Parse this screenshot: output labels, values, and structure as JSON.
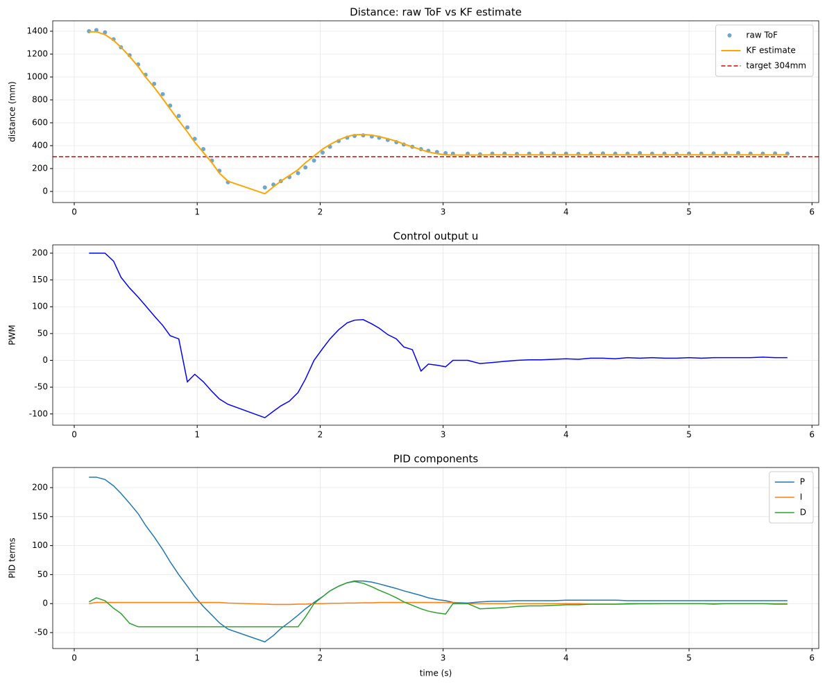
{
  "chart_data": [
    {
      "type": "line",
      "title": "Distance: raw ToF vs KF estimate",
      "ylabel": "distance (mm)",
      "x": [
        0.12,
        0.18,
        0.25,
        0.32,
        0.38,
        0.45,
        0.52,
        0.58,
        0.65,
        0.72,
        0.78,
        0.85,
        0.92,
        0.98,
        1.05,
        1.12,
        1.18,
        1.25,
        1.55,
        1.62,
        1.68,
        1.75,
        1.82,
        1.88,
        1.95,
        2.02,
        2.08,
        2.15,
        2.22,
        2.28,
        2.35,
        2.42,
        2.48,
        2.55,
        2.62,
        2.68,
        2.75,
        2.82,
        2.88,
        2.95,
        3.02,
        3.08,
        3.2,
        3.3,
        3.4,
        3.5,
        3.6,
        3.7,
        3.8,
        3.9,
        4.0,
        4.1,
        4.2,
        4.3,
        4.4,
        4.5,
        4.6,
        4.7,
        4.8,
        4.9,
        5.0,
        5.1,
        5.2,
        5.3,
        5.4,
        5.5,
        5.6,
        5.7,
        5.8
      ],
      "series": [
        {
          "name": "raw ToF",
          "color": "#1f77b4",
          "marker": "circle",
          "linestyle": "none",
          "values": [
            1400,
            1410,
            1390,
            1330,
            1260,
            1190,
            1110,
            1020,
            940,
            850,
            750,
            660,
            560,
            460,
            370,
            270,
            180,
            80,
            35,
            60,
            90,
            125,
            160,
            210,
            270,
            340,
            390,
            440,
            470,
            485,
            490,
            480,
            470,
            450,
            430,
            410,
            390,
            370,
            355,
            345,
            335,
            330,
            330,
            325,
            330,
            330,
            328,
            330,
            332,
            330,
            330,
            328,
            330,
            332,
            330,
            330,
            335,
            330,
            330,
            328,
            330,
            330,
            332,
            330,
            335,
            330,
            330,
            332,
            330
          ]
        },
        {
          "name": "KF estimate",
          "color": "#ffa500",
          "linestyle": "solid",
          "linewidth": 2,
          "values": [
            1395,
            1395,
            1370,
            1320,
            1260,
            1180,
            1090,
            1000,
            910,
            810,
            720,
            620,
            520,
            430,
            340,
            250,
            160,
            90,
            -20,
            40,
            90,
            140,
            190,
            250,
            310,
            370,
            410,
            450,
            480,
            495,
            498,
            492,
            480,
            460,
            440,
            415,
            390,
            365,
            345,
            330,
            320,
            318,
            318,
            318,
            320,
            320,
            320,
            320,
            320,
            320,
            320,
            320,
            320,
            320,
            320,
            320,
            320,
            320,
            320,
            320,
            320,
            320,
            320,
            320,
            320,
            320,
            320,
            320,
            320
          ]
        }
      ],
      "hlines": [
        {
          "name": "target 304mm",
          "value": 304,
          "color": "#e00000",
          "linestyle": "dashed"
        }
      ],
      "xlim": [
        -0.175,
        6.055
      ],
      "ylim": [
        -97,
        1491
      ],
      "xticks": [
        0,
        1,
        2,
        3,
        4,
        5,
        6
      ],
      "yticks": [
        0,
        200,
        400,
        600,
        800,
        1000,
        1200,
        1400
      ],
      "grid": true,
      "legend": "upper right"
    },
    {
      "type": "line",
      "title": "Control output u",
      "ylabel": "PWM",
      "x": [
        0.12,
        0.18,
        0.25,
        0.32,
        0.38,
        0.45,
        0.52,
        0.58,
        0.65,
        0.72,
        0.78,
        0.85,
        0.92,
        0.98,
        1.05,
        1.12,
        1.18,
        1.25,
        1.55,
        1.62,
        1.68,
        1.75,
        1.82,
        1.88,
        1.95,
        2.02,
        2.08,
        2.15,
        2.22,
        2.28,
        2.35,
        2.42,
        2.48,
        2.55,
        2.62,
        2.68,
        2.75,
        2.82,
        2.88,
        2.95,
        3.02,
        3.08,
        3.2,
        3.3,
        3.4,
        3.5,
        3.6,
        3.7,
        3.8,
        3.9,
        4.0,
        4.1,
        4.2,
        4.3,
        4.4,
        4.5,
        4.6,
        4.7,
        4.8,
        4.9,
        5.0,
        5.1,
        5.2,
        5.3,
        5.4,
        5.5,
        5.6,
        5.7,
        5.8
      ],
      "series": [
        {
          "color": "#0000ff",
          "linestyle": "solid",
          "values": [
            200,
            200,
            200,
            185,
            155,
            135,
            118,
            102,
            83,
            65,
            46,
            40,
            -40,
            -26,
            -40,
            -58,
            -72,
            -82,
            -107,
            -95,
            -85,
            -76,
            -60,
            -35,
            0,
            22,
            40,
            57,
            70,
            75,
            76,
            68,
            60,
            48,
            40,
            25,
            20,
            -20,
            -7,
            -9,
            -12,
            0,
            0,
            -6,
            -4,
            -2,
            0,
            1,
            1,
            2,
            3,
            2,
            4,
            4,
            3,
            5,
            4,
            5,
            4,
            4,
            5,
            4,
            5,
            5,
            5,
            5,
            6,
            5,
            5
          ]
        }
      ],
      "xlim": [
        -0.175,
        6.055
      ],
      "ylim": [
        -121,
        215.5
      ],
      "xticks": [
        0,
        1,
        2,
        3,
        4,
        5,
        6
      ],
      "yticks": [
        -100,
        -50,
        0,
        50,
        100,
        150,
        200
      ],
      "grid": true
    },
    {
      "type": "line",
      "title": "PID components",
      "xlabel": "time (s)",
      "ylabel": "PID terms",
      "x": [
        0.12,
        0.18,
        0.25,
        0.32,
        0.38,
        0.45,
        0.52,
        0.58,
        0.65,
        0.72,
        0.78,
        0.85,
        0.92,
        0.98,
        1.05,
        1.12,
        1.18,
        1.25,
        1.55,
        1.62,
        1.68,
        1.75,
        1.82,
        1.88,
        1.95,
        2.02,
        2.08,
        2.15,
        2.22,
        2.28,
        2.35,
        2.42,
        2.48,
        2.55,
        2.62,
        2.68,
        2.75,
        2.82,
        2.88,
        2.95,
        3.02,
        3.08,
        3.2,
        3.3,
        3.4,
        3.5,
        3.6,
        3.7,
        3.8,
        3.9,
        4.0,
        4.1,
        4.2,
        4.3,
        4.4,
        4.5,
        4.6,
        4.7,
        4.8,
        4.9,
        5.0,
        5.1,
        5.2,
        5.3,
        5.4,
        5.5,
        5.6,
        5.7,
        5.8
      ],
      "series": [
        {
          "name": "P",
          "color": "#1f77b4",
          "linestyle": "solid",
          "values": [
            218,
            218,
            214,
            203,
            190,
            173,
            155,
            135,
            115,
            93,
            72,
            50,
            30,
            12,
            -5,
            -20,
            -33,
            -44,
            -66,
            -55,
            -43,
            -32,
            -20,
            -9,
            2,
            12,
            22,
            30,
            36,
            39,
            39,
            37,
            34,
            30,
            26,
            22,
            18,
            14,
            10,
            7,
            5,
            2,
            1,
            3,
            4,
            4,
            5,
            5,
            5,
            5,
            6,
            6,
            6,
            6,
            6,
            5,
            5,
            5,
            5,
            5,
            5,
            5,
            5,
            5,
            5,
            5,
            5,
            5,
            5
          ]
        },
        {
          "name": "I",
          "color": "#ff7f0e",
          "linestyle": "solid",
          "values": [
            0,
            2,
            2,
            2,
            2,
            2,
            2,
            2,
            2,
            2,
            2,
            2,
            2,
            2,
            2,
            2,
            2,
            1,
            -1,
            -1.5,
            -1.5,
            -1.5,
            -1,
            -1,
            0,
            0,
            0.5,
            0.5,
            1,
            1,
            1.5,
            1.5,
            2,
            2,
            2,
            2,
            2,
            2,
            2,
            2,
            2,
            1.5,
            0,
            0,
            0,
            0,
            0,
            0,
            0,
            0,
            0,
            0,
            -1,
            -1,
            -1,
            -1,
            -0.5,
            -0.5,
            0,
            0,
            0,
            0,
            0,
            0,
            0,
            0,
            0,
            0,
            0
          ]
        },
        {
          "name": "D",
          "color": "#2ca02c",
          "linestyle": "solid",
          "values": [
            3,
            10,
            5,
            -8,
            -17,
            -34,
            -40,
            -40,
            -40,
            -40,
            -40,
            -40,
            -40,
            -40,
            -40,
            -40,
            -40,
            -40,
            -40,
            -40,
            -40,
            -40,
            -40,
            -23,
            0,
            12,
            22,
            30,
            36,
            38,
            35,
            29,
            23,
            17,
            10,
            3,
            -3,
            -9,
            -13,
            -16,
            -18,
            0,
            0,
            -9,
            -8,
            -7,
            -5,
            -4,
            -4,
            -3,
            -2,
            -2,
            -1,
            -1,
            -1,
            0,
            0,
            0,
            0,
            0,
            0,
            0,
            -1,
            0,
            0,
            0,
            0,
            -1,
            -1
          ]
        }
      ],
      "xlim": [
        -0.175,
        6.055
      ],
      "ylim": [
        -77.5,
        234.7
      ],
      "xticks": [
        0,
        1,
        2,
        3,
        4,
        5,
        6
      ],
      "yticks": [
        -50,
        0,
        50,
        100,
        150,
        200
      ],
      "grid": true,
      "legend": "upper right"
    }
  ]
}
